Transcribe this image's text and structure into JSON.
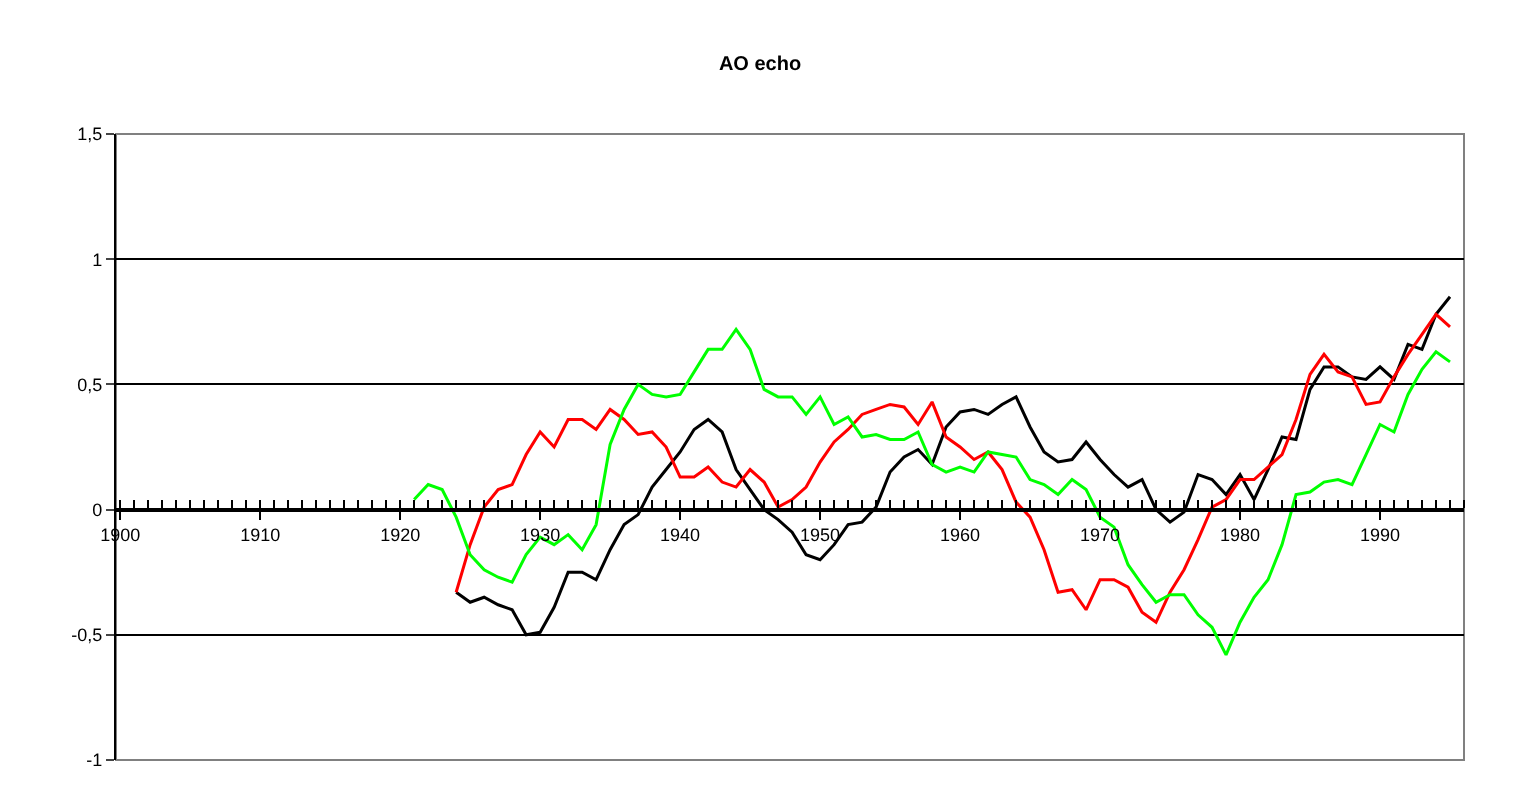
{
  "chart_data": {
    "type": "line",
    "title": "AO echo",
    "xlim": [
      1899.7,
      1996
    ],
    "xticks": [
      1900,
      1910,
      1920,
      1930,
      1940,
      1950,
      1960,
      1970,
      1980,
      1990
    ],
    "ylim": [
      -1,
      1.5
    ],
    "yticks": [
      {
        "value": -1,
        "label": "-1"
      },
      {
        "value": -0.5,
        "label": "-0,5"
      },
      {
        "value": 0,
        "label": "0"
      },
      {
        "value": 0.5,
        "label": "0,5"
      },
      {
        "value": 1,
        "label": "1"
      },
      {
        "value": 1.5,
        "label": "1,5"
      }
    ],
    "grid": "y",
    "marker": "none",
    "line_style": "solid",
    "series": [
      {
        "color": "#000000",
        "x": [
          1924,
          1925,
          1926,
          1927,
          1928,
          1929,
          1930,
          1931,
          1932,
          1933,
          1934,
          1935,
          1936,
          1937,
          1938,
          1939,
          1940,
          1941,
          1942,
          1943,
          1944,
          1945,
          1946,
          1947,
          1948,
          1949,
          1950,
          1951,
          1952,
          1953,
          1954,
          1955,
          1956,
          1957,
          1958,
          1959,
          1960,
          1961,
          1962,
          1963,
          1964,
          1965,
          1966,
          1967,
          1968,
          1969,
          1970,
          1971,
          1972,
          1973,
          1974,
          1975,
          1976,
          1977,
          1978,
          1979,
          1980,
          1981,
          1982,
          1983,
          1984,
          1985,
          1986,
          1987,
          1988,
          1989,
          1990,
          1991,
          1992,
          1993,
          1994,
          1995
        ],
        "values": [
          -0.33,
          -0.37,
          -0.35,
          -0.38,
          -0.4,
          -0.5,
          -0.49,
          -0.39,
          -0.25,
          -0.25,
          -0.28,
          -0.16,
          -0.06,
          -0.02,
          0.09,
          0.16,
          0.23,
          0.32,
          0.36,
          0.31,
          0.16,
          0.08,
          0.0,
          -0.04,
          -0.09,
          -0.18,
          -0.2,
          -0.14,
          -0.06,
          -0.05,
          0.01,
          0.15,
          0.21,
          0.24,
          0.18,
          0.33,
          0.39,
          0.4,
          0.38,
          0.42,
          0.45,
          0.33,
          0.23,
          0.19,
          0.2,
          0.27,
          0.2,
          0.14,
          0.09,
          0.12,
          0.0,
          -0.05,
          -0.01,
          0.14,
          0.12,
          0.06,
          0.14,
          0.04,
          0.16,
          0.29,
          0.28,
          0.48,
          0.57,
          0.57,
          0.53,
          0.52,
          0.57,
          0.52,
          0.66,
          0.64,
          0.78,
          0.85
        ]
      },
      {
        "color": "#ff0000",
        "x": [
          1924,
          1925,
          1926,
          1927,
          1928,
          1929,
          1930,
          1931,
          1932,
          1933,
          1934,
          1935,
          1936,
          1937,
          1938,
          1939,
          1940,
          1941,
          1942,
          1943,
          1944,
          1945,
          1946,
          1947,
          1948,
          1949,
          1950,
          1951,
          1952,
          1953,
          1954,
          1955,
          1956,
          1957,
          1958,
          1959,
          1960,
          1961,
          1962,
          1963,
          1964,
          1965,
          1966,
          1967,
          1968,
          1969,
          1970,
          1971,
          1972,
          1973,
          1974,
          1975,
          1976,
          1977,
          1978,
          1979,
          1980,
          1981,
          1982,
          1983,
          1984,
          1985,
          1986,
          1987,
          1988,
          1989,
          1990,
          1991,
          1992,
          1993,
          1994,
          1995
        ],
        "values": [
          -0.33,
          -0.14,
          0.01,
          0.08,
          0.1,
          0.22,
          0.31,
          0.25,
          0.36,
          0.36,
          0.32,
          0.4,
          0.36,
          0.3,
          0.31,
          0.25,
          0.13,
          0.13,
          0.17,
          0.11,
          0.09,
          0.16,
          0.11,
          0.01,
          0.04,
          0.09,
          0.19,
          0.27,
          0.32,
          0.38,
          0.4,
          0.42,
          0.41,
          0.34,
          0.43,
          0.29,
          0.25,
          0.2,
          0.23,
          0.16,
          0.03,
          -0.03,
          -0.16,
          -0.33,
          -0.32,
          -0.4,
          -0.28,
          -0.28,
          -0.31,
          -0.41,
          -0.45,
          -0.33,
          -0.24,
          -0.12,
          0.01,
          0.04,
          0.12,
          0.12,
          0.17,
          0.22,
          0.36,
          0.54,
          0.62,
          0.55,
          0.53,
          0.42,
          0.43,
          0.53,
          0.62,
          0.7,
          0.78,
          0.73
        ]
      },
      {
        "color": "#00ff00",
        "x": [
          1921,
          1922,
          1923,
          1924,
          1925,
          1926,
          1927,
          1928,
          1929,
          1930,
          1931,
          1932,
          1933,
          1934,
          1935,
          1936,
          1937,
          1938,
          1939,
          1940,
          1941,
          1942,
          1943,
          1944,
          1945,
          1946,
          1947,
          1948,
          1949,
          1950,
          1951,
          1952,
          1953,
          1954,
          1955,
          1956,
          1957,
          1958,
          1959,
          1960,
          1961,
          1962,
          1963,
          1964,
          1965,
          1966,
          1967,
          1968,
          1969,
          1970,
          1971,
          1972,
          1973,
          1974,
          1975,
          1976,
          1977,
          1978,
          1979,
          1980,
          1981,
          1982,
          1983,
          1984,
          1985,
          1986,
          1987,
          1988,
          1989,
          1990,
          1991,
          1992,
          1993,
          1994,
          1995
        ],
        "values": [
          0.04,
          0.1,
          0.08,
          -0.03,
          -0.18,
          -0.24,
          -0.27,
          -0.29,
          -0.18,
          -0.11,
          -0.14,
          -0.1,
          -0.16,
          -0.06,
          0.26,
          0.4,
          0.5,
          0.46,
          0.45,
          0.46,
          0.55,
          0.64,
          0.64,
          0.72,
          0.64,
          0.48,
          0.45,
          0.45,
          0.38,
          0.45,
          0.34,
          0.37,
          0.29,
          0.3,
          0.28,
          0.28,
          0.31,
          0.18,
          0.15,
          0.17,
          0.15,
          0.23,
          0.22,
          0.21,
          0.12,
          0.1,
          0.06,
          0.12,
          0.08,
          -0.03,
          -0.07,
          -0.22,
          -0.3,
          -0.37,
          -0.34,
          -0.34,
          -0.42,
          -0.47,
          -0.58,
          -0.45,
          -0.35,
          -0.28,
          -0.14,
          0.06,
          0.07,
          0.11,
          0.12,
          0.1,
          0.22,
          0.34,
          0.31,
          0.46,
          0.56,
          0.63,
          0.59
        ]
      }
    ]
  }
}
